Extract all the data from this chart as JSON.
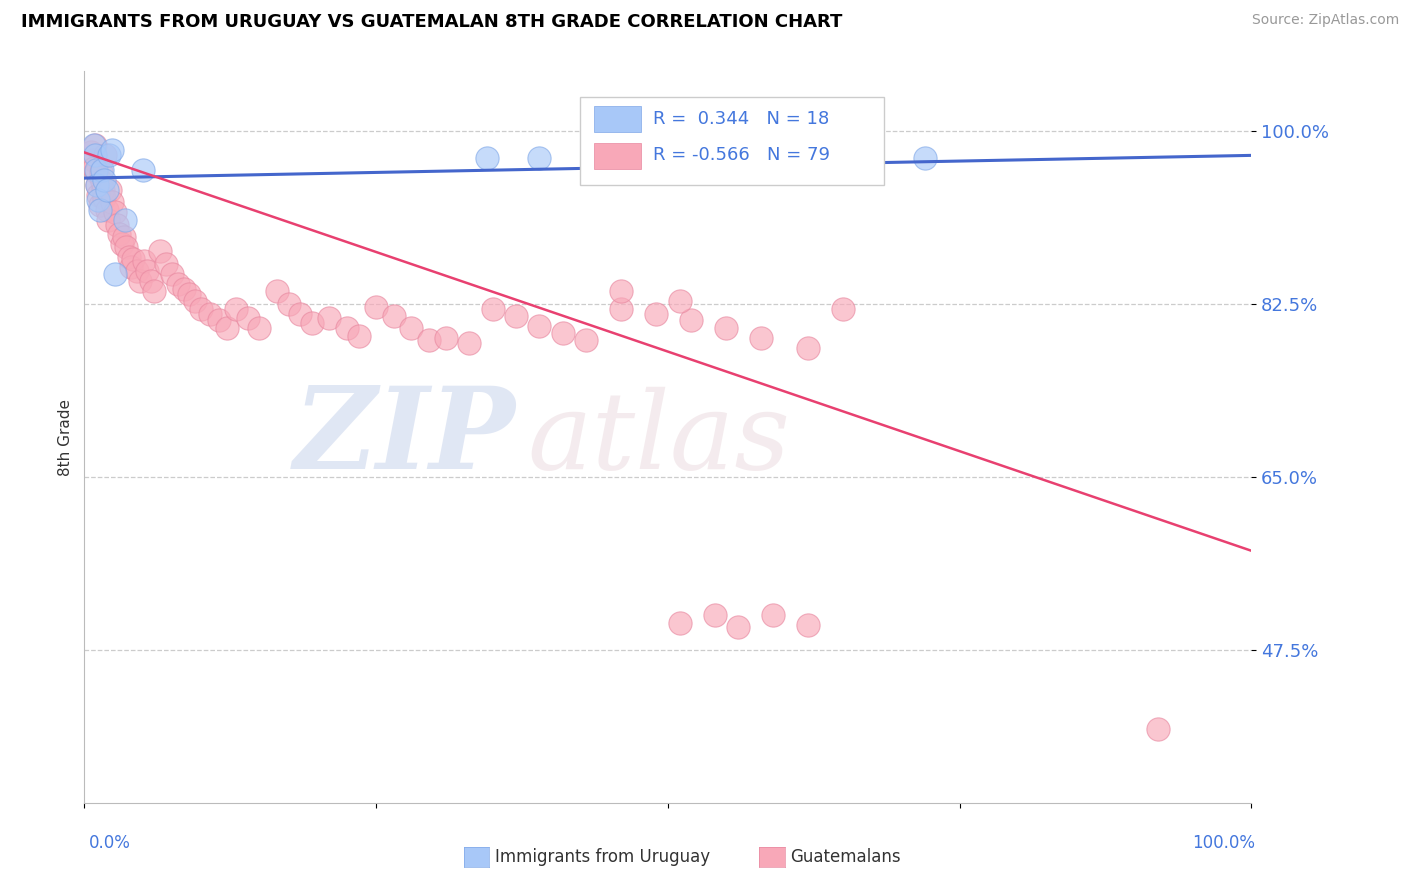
{
  "title": "IMMIGRANTS FROM URUGUAY VS GUATEMALAN 8TH GRADE CORRELATION CHART",
  "source_text": "Source: ZipAtlas.com",
  "ylabel": "8th Grade",
  "ytick_labels": [
    "100.0%",
    "82.5%",
    "65.0%",
    "47.5%"
  ],
  "ytick_values": [
    1.0,
    0.825,
    0.65,
    0.475
  ],
  "xlim": [
    0.0,
    1.0
  ],
  "ylim": [
    0.32,
    1.06
  ],
  "legend_r_blue": "0.344",
  "legend_n_blue": "18",
  "legend_r_pink": "-0.566",
  "legend_n_pink": "79",
  "blue_color": "#a8c8f8",
  "blue_edge_color": "#80a8e8",
  "pink_color": "#f8a8b8",
  "pink_edge_color": "#e888a0",
  "line_blue_color": "#4466cc",
  "line_pink_color": "#e84070",
  "watermark_zip_color": "#d0d8f0",
  "watermark_atlas_color": "#f0d8dc",
  "blue_scatter_x": [
    0.008,
    0.009,
    0.01,
    0.011,
    0.012,
    0.013,
    0.015,
    0.017,
    0.019,
    0.021,
    0.024,
    0.026,
    0.035,
    0.05,
    0.345,
    0.39,
    0.62,
    0.72
  ],
  "blue_scatter_y": [
    0.985,
    0.975,
    0.96,
    0.945,
    0.93,
    0.92,
    0.96,
    0.95,
    0.94,
    0.975,
    0.98,
    0.855,
    0.91,
    0.96,
    0.972,
    0.972,
    0.972,
    0.972
  ],
  "pink_scatter_x": [
    0.006,
    0.007,
    0.008,
    0.009,
    0.01,
    0.011,
    0.012,
    0.013,
    0.014,
    0.015,
    0.016,
    0.017,
    0.018,
    0.019,
    0.02,
    0.022,
    0.024,
    0.026,
    0.028,
    0.03,
    0.032,
    0.034,
    0.036,
    0.038,
    0.04,
    0.042,
    0.045,
    0.048,
    0.051,
    0.054,
    0.057,
    0.06,
    0.065,
    0.07,
    0.075,
    0.08,
    0.085,
    0.09,
    0.095,
    0.1,
    0.108,
    0.115,
    0.122,
    0.13,
    0.14,
    0.15,
    0.165,
    0.175,
    0.185,
    0.195,
    0.21,
    0.225,
    0.235,
    0.25,
    0.265,
    0.28,
    0.295,
    0.31,
    0.33,
    0.35,
    0.37,
    0.39,
    0.41,
    0.43,
    0.46,
    0.49,
    0.52,
    0.55,
    0.58,
    0.46,
    0.51,
    0.62,
    0.65,
    0.51,
    0.54,
    0.56,
    0.59,
    0.62,
    0.92
  ],
  "pink_scatter_y": [
    0.978,
    0.97,
    0.962,
    0.985,
    0.958,
    0.945,
    0.935,
    0.925,
    0.958,
    0.948,
    0.94,
    0.932,
    0.975,
    0.92,
    0.91,
    0.94,
    0.928,
    0.918,
    0.905,
    0.895,
    0.885,
    0.892,
    0.882,
    0.872,
    0.862,
    0.87,
    0.858,
    0.848,
    0.868,
    0.858,
    0.848,
    0.838,
    0.878,
    0.865,
    0.855,
    0.845,
    0.84,
    0.835,
    0.828,
    0.82,
    0.815,
    0.808,
    0.8,
    0.82,
    0.81,
    0.8,
    0.838,
    0.825,
    0.815,
    0.805,
    0.81,
    0.8,
    0.792,
    0.822,
    0.812,
    0.8,
    0.788,
    0.79,
    0.785,
    0.82,
    0.812,
    0.802,
    0.795,
    0.788,
    0.82,
    0.815,
    0.808,
    0.8,
    0.79,
    0.838,
    0.828,
    0.78,
    0.82,
    0.502,
    0.51,
    0.498,
    0.51,
    0.5,
    0.395
  ]
}
